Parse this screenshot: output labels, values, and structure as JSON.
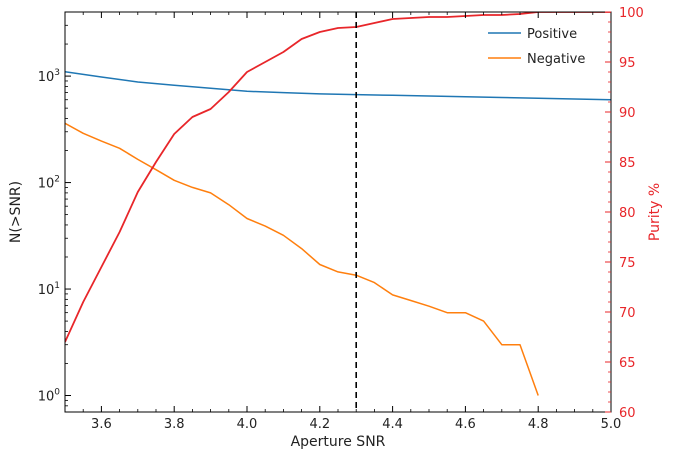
{
  "chart_data": {
    "type": "line",
    "xlabel": "Aperture SNR",
    "ylabel_left": "N(>SNR)",
    "ylabel_right": "Purity %",
    "xlim": [
      3.5,
      5.0
    ],
    "ylim_left": [
      0.7,
      4000
    ],
    "ylim_right": [
      60,
      100
    ],
    "left_scale": "log",
    "x_ticks": [
      "3.6",
      "3.8",
      "4.0",
      "4.2",
      "4.4",
      "4.6",
      "4.8",
      "5.0"
    ],
    "left_ticks": [
      {
        "value": 1,
        "base": "10",
        "exp": "0"
      },
      {
        "value": 10,
        "base": "10",
        "exp": "1"
      },
      {
        "value": 100,
        "base": "10",
        "exp": "2"
      },
      {
        "value": 1000,
        "base": "10",
        "exp": "3"
      }
    ],
    "right_ticks": [
      "60",
      "65",
      "70",
      "75",
      "80",
      "85",
      "90",
      "95",
      "100"
    ],
    "threshold_x": 4.3,
    "legend_position": "top-right",
    "series": [
      {
        "name": "Positive",
        "axis": "left",
        "color": "#1f77b4",
        "x": [
          3.5,
          3.6,
          3.7,
          3.8,
          3.9,
          4.0,
          4.1,
          4.2,
          4.3,
          4.4,
          4.5,
          4.6,
          4.7,
          4.8,
          4.9,
          5.0
        ],
        "y": [
          1100,
          980,
          880,
          820,
          770,
          720,
          700,
          680,
          670,
          660,
          650,
          640,
          630,
          620,
          610,
          600
        ]
      },
      {
        "name": "Negative",
        "axis": "left",
        "color": "#ff7f0e",
        "x": [
          3.5,
          3.55,
          3.6,
          3.65,
          3.7,
          3.75,
          3.8,
          3.85,
          3.9,
          3.95,
          4.0,
          4.05,
          4.1,
          4.15,
          4.2,
          4.25,
          4.3,
          4.35,
          4.4,
          4.45,
          4.5,
          4.55,
          4.6,
          4.65,
          4.7,
          4.75,
          4.8
        ],
        "y": [
          360,
          290,
          245,
          210,
          165,
          132,
          105,
          90,
          80,
          62,
          46,
          39,
          32,
          24,
          17,
          14.5,
          13.5,
          11.5,
          8.8,
          7.8,
          6.9,
          6.0,
          6.0,
          5.0,
          3.0,
          3.0,
          1.0
        ]
      },
      {
        "axis": "right",
        "color": "#e8262a",
        "x": [
          3.5,
          3.55,
          3.6,
          3.65,
          3.7,
          3.75,
          3.8,
          3.85,
          3.9,
          3.95,
          4.0,
          4.05,
          4.1,
          4.15,
          4.2,
          4.25,
          4.3,
          4.35,
          4.4,
          4.45,
          4.5,
          4.55,
          4.6,
          4.65,
          4.7,
          4.75,
          4.8,
          4.85,
          4.9,
          5.0
        ],
        "y": [
          67,
          71,
          74.5,
          78,
          82,
          85,
          87.8,
          89.5,
          90.3,
          92,
          94,
          95,
          96,
          97.3,
          98,
          98.4,
          98.5,
          98.9,
          99.3,
          99.4,
          99.5,
          99.5,
          99.6,
          99.7,
          99.7,
          99.8,
          100,
          100,
          100,
          100
        ]
      }
    ]
  }
}
